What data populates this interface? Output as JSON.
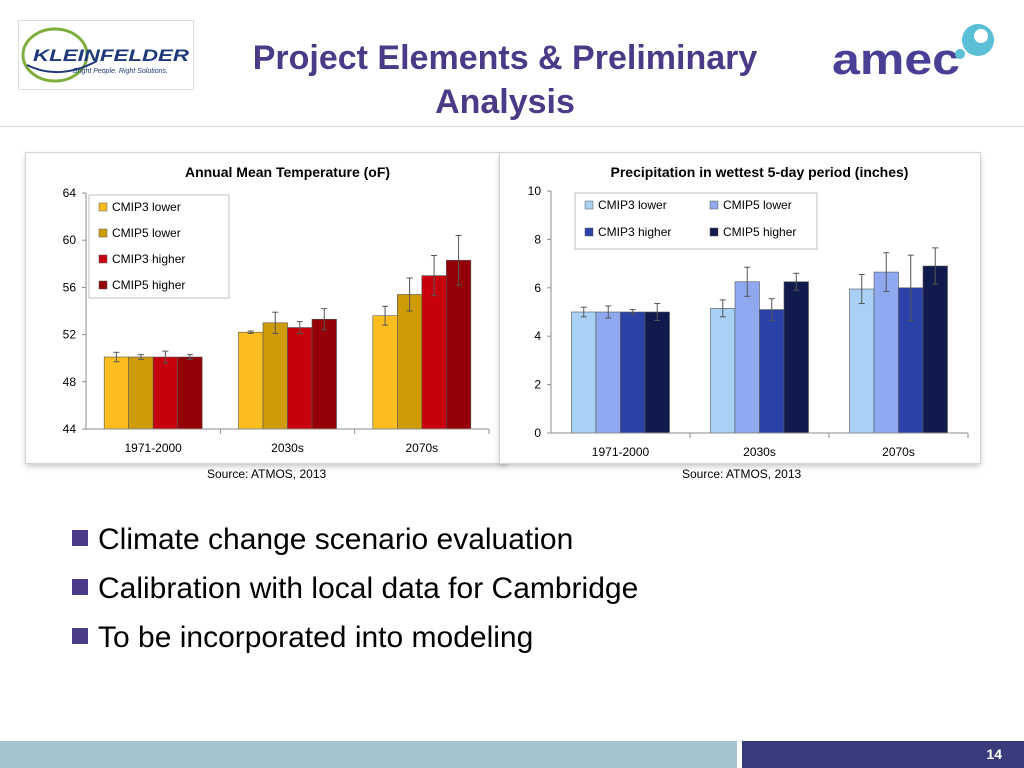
{
  "slide": {
    "title_line1": "Project Elements & Preliminary",
    "title_line2": "Analysis",
    "page_number": "14",
    "colors": {
      "title": "#4b3a87",
      "footer_left": "#a4c5cf",
      "footer_right": "#3a3b7c",
      "bullet": "#4b3a87"
    }
  },
  "logos": {
    "left": {
      "name": "KLEINFELDER",
      "tagline": "Bright People. Right Solutions."
    },
    "right": {
      "name": "amec"
    }
  },
  "sources": [
    "Source: ATMOS, 2013",
    "Source: ATMOS, 2013"
  ],
  "bullets": [
    "Climate change scenario evaluation",
    "Calibration with local data for Cambridge",
    "To be incorporated into modeling"
  ],
  "chart_data": [
    {
      "type": "bar",
      "title": "Annual Mean Temperature (oF)",
      "categories": [
        "1971-2000",
        "2030s",
        "2070s"
      ],
      "ylim": [
        44,
        64
      ],
      "yticks": [
        44,
        48,
        52,
        56,
        60,
        64
      ],
      "grid": false,
      "legend_position": "top-left",
      "legend_columns": 1,
      "series": [
        {
          "name": "CMIP3 lower",
          "color": "#fbbe1e",
          "values": [
            50.1,
            52.2,
            53.6
          ],
          "errors": [
            0.4,
            0.1,
            0.8
          ]
        },
        {
          "name": "CMIP5 lower",
          "color": "#cf9b08",
          "values": [
            50.1,
            53.0,
            55.4
          ],
          "errors": [
            0.2,
            0.9,
            1.4
          ]
        },
        {
          "name": "CMIP3 higher",
          "color": "#c7000d",
          "values": [
            50.1,
            52.6,
            57.0
          ],
          "errors": [
            0.5,
            0.5,
            1.7
          ]
        },
        {
          "name": "CMIP5 higher",
          "color": "#950007",
          "values": [
            50.1,
            53.3,
            58.3
          ],
          "errors": [
            0.2,
            0.9,
            2.1
          ]
        }
      ]
    },
    {
      "type": "bar",
      "title": "Precipitation in wettest 5-day period (inches)",
      "categories": [
        "1971-2000",
        "2030s",
        "2070s"
      ],
      "ylim": [
        0,
        10
      ],
      "yticks": [
        0,
        2,
        4,
        6,
        8,
        10
      ],
      "grid": false,
      "legend_position": "top",
      "legend_columns": 2,
      "series": [
        {
          "name": "CMIP3 lower",
          "color": "#a9d0f5",
          "values": [
            5.0,
            5.15,
            5.95
          ],
          "errors": [
            0.2,
            0.35,
            0.6
          ]
        },
        {
          "name": "CMIP5 lower",
          "color": "#8ea9f0",
          "values": [
            5.0,
            6.25,
            6.65
          ],
          "errors": [
            0.25,
            0.6,
            0.8
          ]
        },
        {
          "name": "CMIP3 higher",
          "color": "#2a42a8",
          "values": [
            5.0,
            5.1,
            6.0
          ],
          "errors": [
            0.1,
            0.45,
            1.35
          ]
        },
        {
          "name": "CMIP5 higher",
          "color": "#111a4d",
          "values": [
            5.0,
            6.25,
            6.9
          ],
          "errors": [
            0.35,
            0.35,
            0.75
          ]
        }
      ]
    }
  ]
}
